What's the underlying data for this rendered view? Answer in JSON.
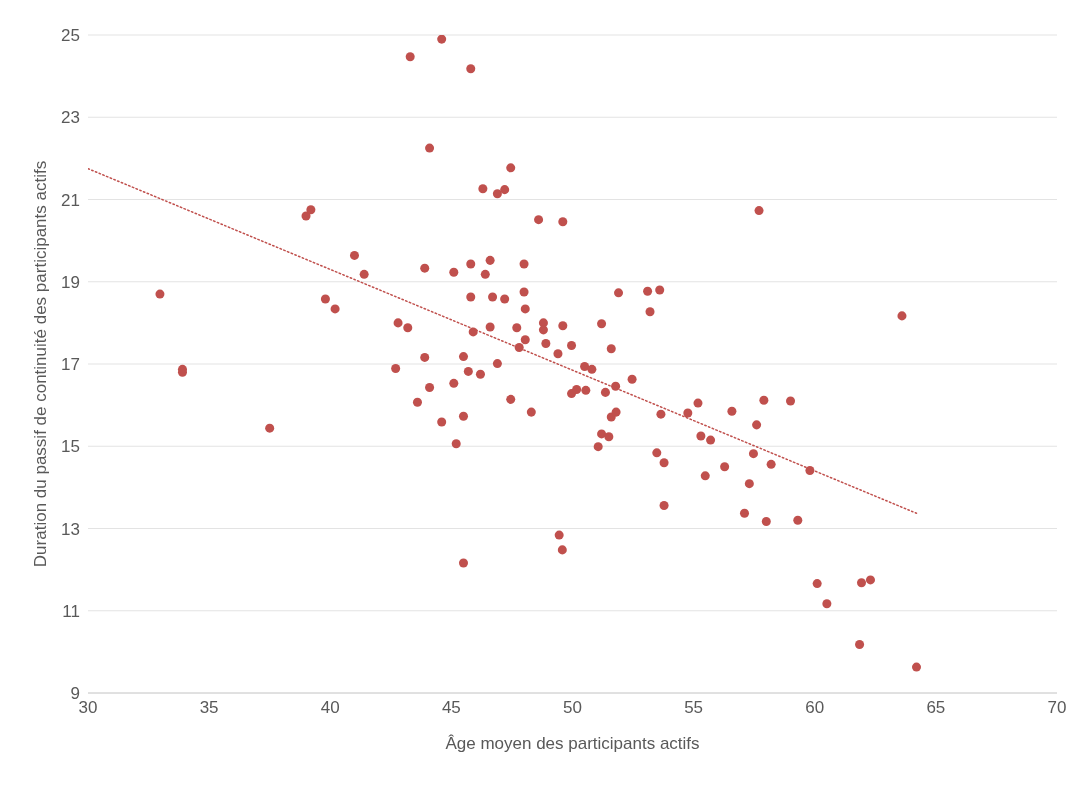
{
  "chart_data": {
    "type": "scatter",
    "xlabel": "Âge moyen des participants actifs",
    "ylabel": "Duration du passif de continuité des participants actifs",
    "xlim": [
      30,
      70
    ],
    "xticks": [
      30,
      35,
      40,
      45,
      50,
      55,
      60,
      65,
      70
    ],
    "ylim": [
      9,
      25
    ],
    "yticks": [
      9,
      11,
      13,
      15,
      17,
      19,
      21,
      23,
      25
    ],
    "grid": "y",
    "series": [
      {
        "color": "#c0504d",
        "marker": "circle",
        "x": [
          32.97,
          33.9,
          33.9,
          37.5,
          39.0,
          39.2,
          41.0,
          41.4,
          39.8,
          40.2,
          43.3,
          44.6,
          45.8,
          44.1,
          43.9,
          45.1,
          45.8,
          42.8,
          43.2,
          43.9,
          45.5,
          42.7,
          45.7,
          45.8,
          45.9,
          44.1,
          45.1,
          43.6,
          45.5,
          44.6,
          45.2,
          45.5,
          47.45,
          46.3,
          46.9,
          47.2,
          48.6,
          49.6,
          46.6,
          46.4,
          48.0,
          46.7,
          47.2,
          48.0,
          48.05,
          51.9,
          53.1,
          53.6,
          53.2,
          46.6,
          47.7,
          48.8,
          48.8,
          49.6,
          51.2,
          48.05,
          47.8,
          48.9,
          49.4,
          49.96,
          51.6,
          46.9,
          50.5,
          50.8,
          46.2,
          47.45,
          48.3,
          49.96,
          50.17,
          50.55,
          51.36,
          51.78,
          52.46,
          51.2,
          51.5,
          51.06,
          51.6,
          51.8,
          53.65,
          53.48,
          53.78,
          53.78,
          55.18,
          54.76,
          55.3,
          55.7,
          55.48,
          56.58,
          56.28,
          57.9,
          59.0,
          57.6,
          57.47,
          58.2,
          57.3,
          59.8,
          57.1,
          58.0,
          59.3,
          49.45,
          49.58,
          60.1,
          60.5,
          61.93,
          62.3,
          61.85,
          64.2,
          63.6,
          57.7
        ],
        "values": [
          18.7,
          16.87,
          16.8,
          15.44,
          20.6,
          20.75,
          19.64,
          19.18,
          18.58,
          18.34,
          24.47,
          24.9,
          24.18,
          22.25,
          19.33,
          19.23,
          19.43,
          18.0,
          17.88,
          17.16,
          17.18,
          16.89,
          16.82,
          18.63,
          17.78,
          16.43,
          16.53,
          16.07,
          15.73,
          15.59,
          15.06,
          12.16,
          21.77,
          21.26,
          21.14,
          21.24,
          20.51,
          20.46,
          19.52,
          19.18,
          19.43,
          18.63,
          18.58,
          18.75,
          18.34,
          18.73,
          18.77,
          18.8,
          18.27,
          17.9,
          17.88,
          18.0,
          17.83,
          17.93,
          17.98,
          17.59,
          17.4,
          17.5,
          17.25,
          17.45,
          17.37,
          17.01,
          16.94,
          16.87,
          16.75,
          16.14,
          15.83,
          16.28,
          16.38,
          16.36,
          16.31,
          16.46,
          16.63,
          15.3,
          15.23,
          14.99,
          15.71,
          15.83,
          15.78,
          14.84,
          14.6,
          13.56,
          16.05,
          15.81,
          15.25,
          15.15,
          14.28,
          15.85,
          14.5,
          16.12,
          16.1,
          15.52,
          14.82,
          14.56,
          14.09,
          14.41,
          13.37,
          13.17,
          13.2,
          12.84,
          12.48,
          11.66,
          11.17,
          11.68,
          11.75,
          10.18,
          9.63,
          18.17,
          20.73
        ]
      },
      {
        "type": "line",
        "color": "#c0504d",
        "marker": "none",
        "line_style": "dotted",
        "x": [
          30,
          64.2
        ],
        "values": [
          21.75,
          13.37
        ]
      }
    ]
  }
}
